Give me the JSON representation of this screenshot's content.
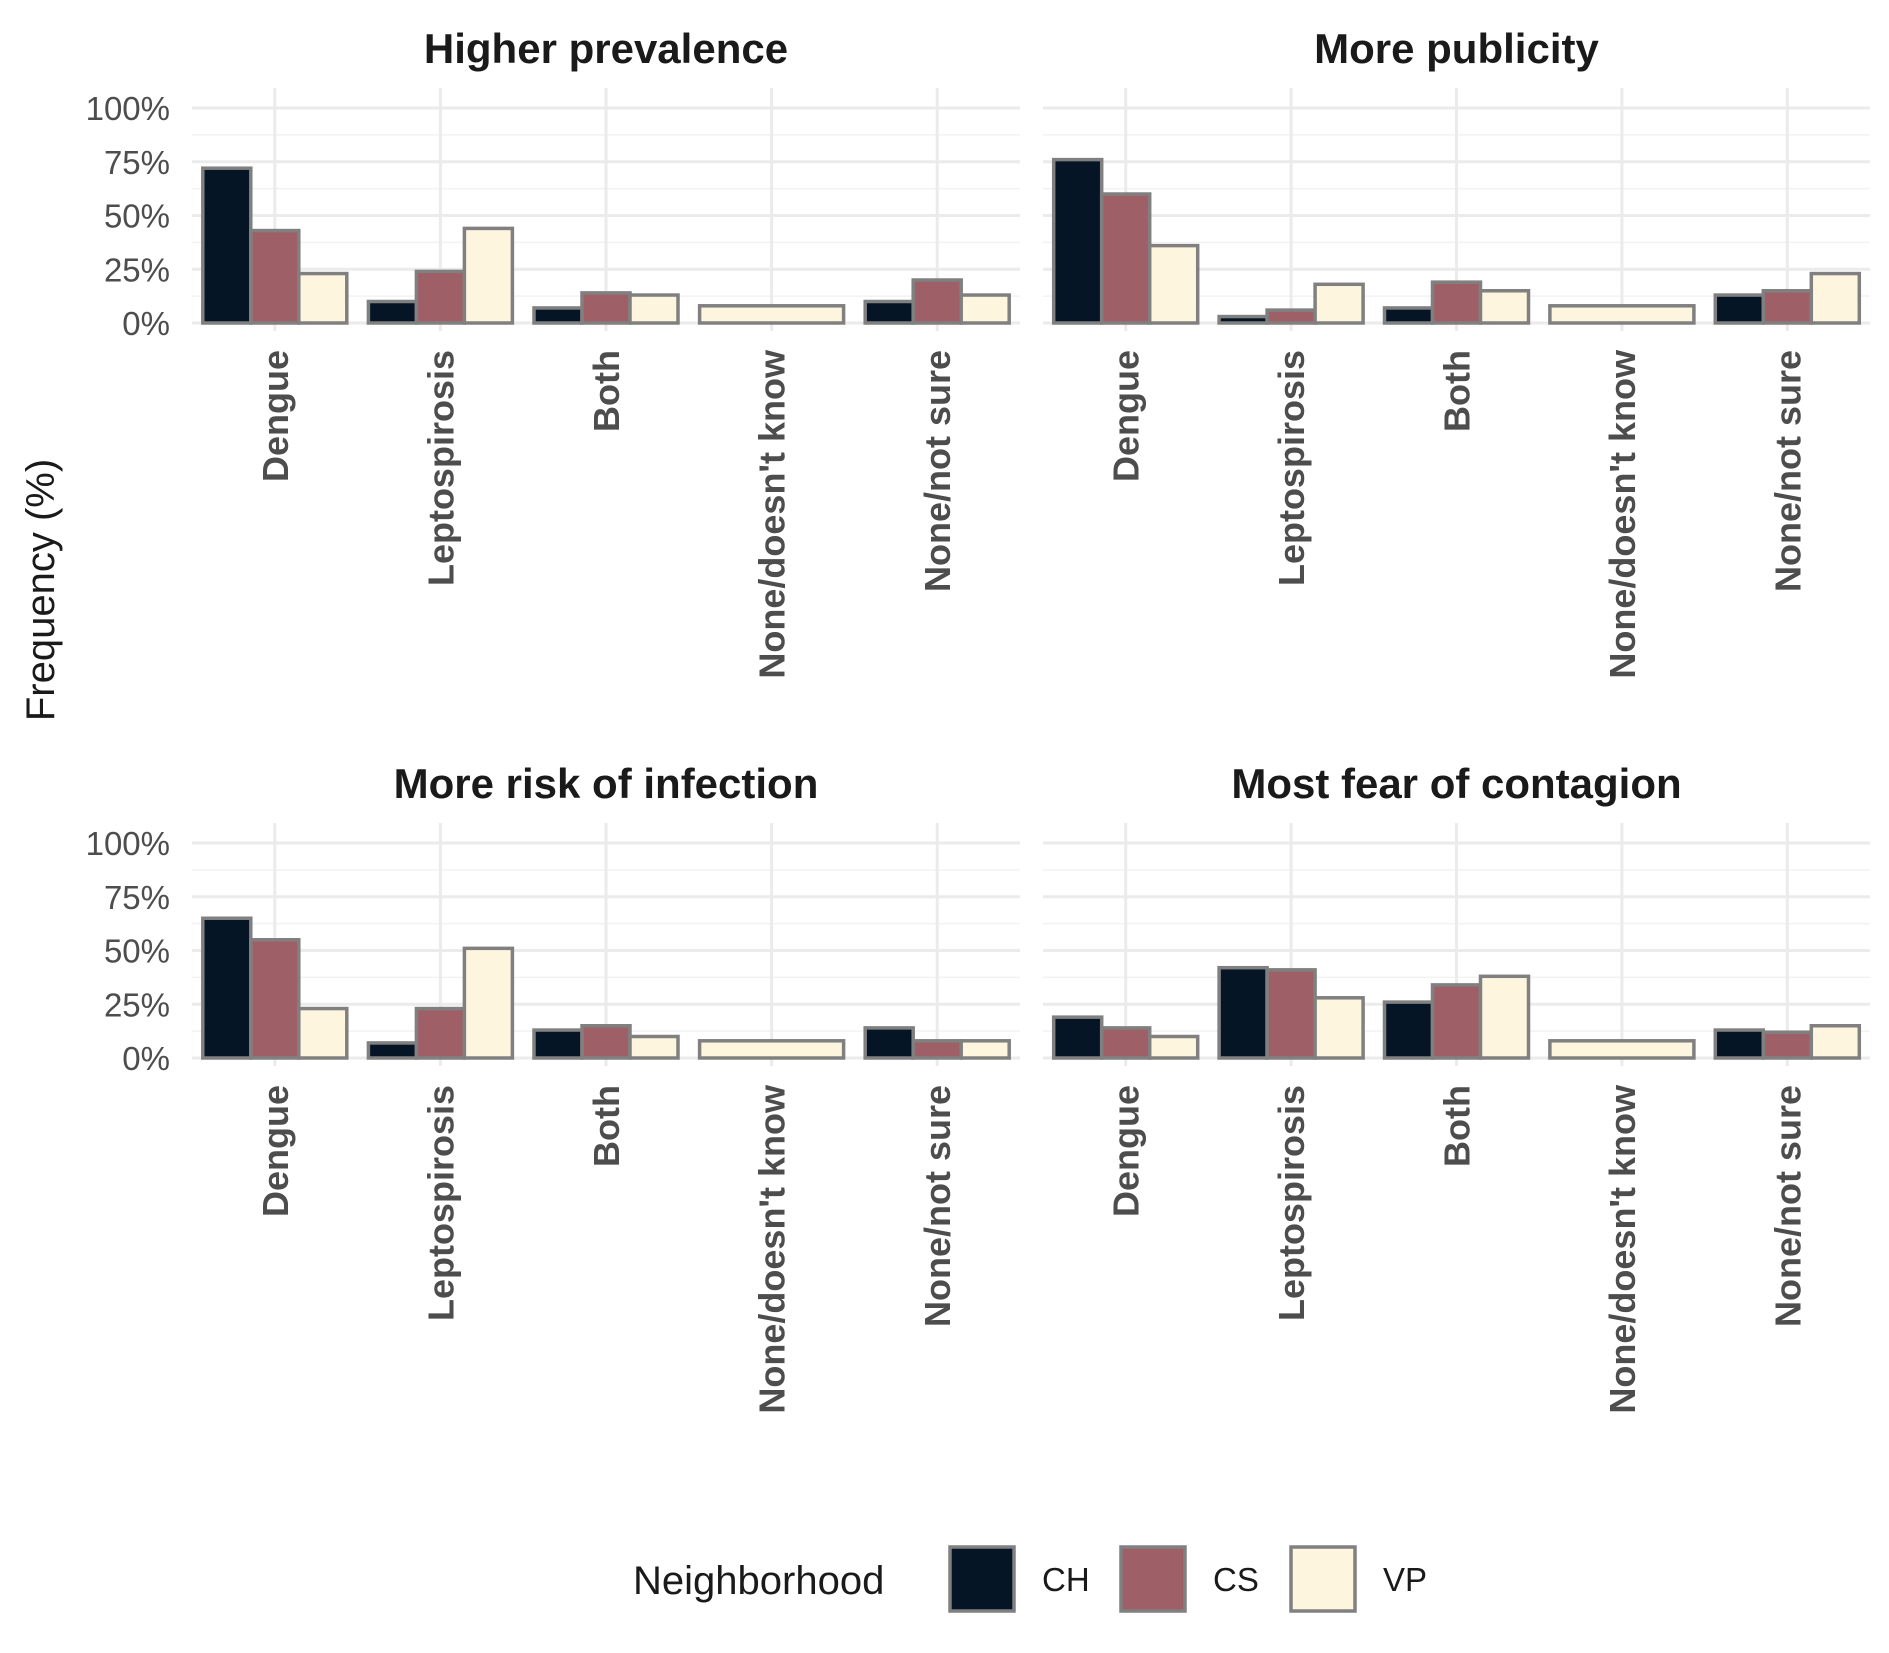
{
  "chart_data": {
    "type": "bar",
    "ylabel": "Frequency (%)",
    "ylim": [
      0,
      100
    ],
    "y_ticks": [
      "0%",
      "25%",
      "50%",
      "75%",
      "100%"
    ],
    "grid": true,
    "legend": {
      "title": "Neighborhood",
      "placement": "bottom",
      "entries": [
        {
          "name": "CH",
          "color": "#051525"
        },
        {
          "name": "CS",
          "color": "#9e6066"
        },
        {
          "name": "VP",
          "color": "#fdf5de"
        }
      ]
    },
    "bar_outline_color": "#808080",
    "categories": [
      "Dengue",
      "Leptospirosis",
      "Both",
      "None/doesn't know",
      "None/not sure"
    ],
    "panels": [
      {
        "title": "Higher prevalence",
        "series": [
          {
            "name": "CH",
            "values": [
              72,
              10,
              7,
              null,
              10
            ]
          },
          {
            "name": "CS",
            "values": [
              43,
              24,
              14,
              null,
              20
            ]
          },
          {
            "name": "VP",
            "values": [
              23,
              44,
              13,
              8,
              13
            ]
          }
        ]
      },
      {
        "title": "More publicity",
        "series": [
          {
            "name": "CH",
            "values": [
              76,
              3,
              7,
              null,
              13
            ]
          },
          {
            "name": "CS",
            "values": [
              60,
              6,
              19,
              null,
              15
            ]
          },
          {
            "name": "VP",
            "values": [
              36,
              18,
              15,
              8,
              23
            ]
          }
        ]
      },
      {
        "title": "More risk of infection",
        "series": [
          {
            "name": "CH",
            "values": [
              65,
              7,
              13,
              null,
              14
            ]
          },
          {
            "name": "CS",
            "values": [
              55,
              23,
              15,
              null,
              8
            ]
          },
          {
            "name": "VP",
            "values": [
              23,
              51,
              10,
              8,
              8
            ]
          }
        ]
      },
      {
        "title": "Most fear of contagion",
        "series": [
          {
            "name": "CH",
            "values": [
              19,
              42,
              26,
              null,
              13
            ]
          },
          {
            "name": "CS",
            "values": [
              14,
              41,
              34,
              null,
              12
            ]
          },
          {
            "name": "VP",
            "values": [
              10,
              28,
              38,
              8,
              15
            ]
          }
        ]
      }
    ]
  }
}
